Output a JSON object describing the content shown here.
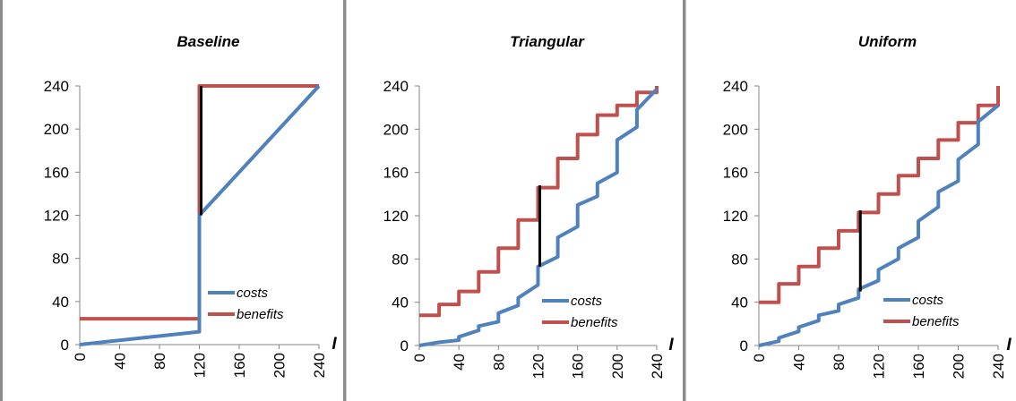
{
  "chart_data": [
    {
      "type": "line",
      "title": "Baseline",
      "xlabel": "I",
      "ylabel": "",
      "xlim": [
        0,
        240
      ],
      "ylim": [
        0,
        240
      ],
      "xticks": [
        "0",
        "40",
        "80",
        "120",
        "160",
        "200",
        "240"
      ],
      "yticks": [
        "0",
        "40",
        "80",
        "120",
        "160",
        "200",
        "240"
      ],
      "grid": false,
      "legend_position": "bottom-right",
      "series": [
        {
          "name": "costs",
          "color": "#4F81BD",
          "x": [
            0,
            120,
            120,
            240
          ],
          "y": [
            0,
            12,
            120,
            240
          ]
        },
        {
          "name": "benefits",
          "color": "#C0504D",
          "x": [
            0,
            120,
            120,
            240
          ],
          "y": [
            24,
            24,
            240,
            240
          ]
        }
      ],
      "gap_marker": {
        "x": 120,
        "y0": 120,
        "y1": 240,
        "color": "#000000"
      }
    },
    {
      "type": "line",
      "title": "Triangular",
      "xlabel": "I",
      "ylabel": "",
      "xlim": [
        0,
        240
      ],
      "ylim": [
        0,
        240
      ],
      "xticks": [
        "0",
        "40",
        "80",
        "120",
        "160",
        "200",
        "240"
      ],
      "yticks": [
        "0",
        "40",
        "80",
        "120",
        "160",
        "200",
        "240"
      ],
      "grid": false,
      "legend_position": "bottom-right",
      "series": [
        {
          "name": "costs",
          "color": "#4F81BD",
          "x": [
            0,
            20,
            40,
            40,
            60,
            60,
            80,
            80,
            100,
            100,
            120,
            120,
            140,
            140,
            160,
            160,
            180,
            180,
            200,
            200,
            220,
            220,
            240
          ],
          "y": [
            0,
            3,
            5,
            8,
            14,
            18,
            22,
            30,
            37,
            44,
            56,
            73,
            82,
            100,
            110,
            130,
            138,
            150,
            160,
            190,
            202,
            218,
            237
          ]
        },
        {
          "name": "benefits",
          "color": "#C0504D",
          "x": [
            0,
            20,
            20,
            40,
            40,
            60,
            60,
            80,
            80,
            100,
            100,
            120,
            120,
            140,
            140,
            160,
            160,
            180,
            180,
            200,
            200,
            220,
            220,
            240,
            240
          ],
          "y": [
            28,
            28,
            38,
            38,
            50,
            50,
            68,
            68,
            90,
            90,
            116,
            116,
            146,
            146,
            173,
            173,
            195,
            195,
            213,
            213,
            222,
            222,
            234,
            234,
            240
          ]
        }
      ],
      "gap_marker": {
        "x": 120,
        "y0": 73,
        "y1": 148,
        "color": "#000000"
      }
    },
    {
      "type": "line",
      "title": "Uniform",
      "xlabel": "I",
      "ylabel": "",
      "xlim": [
        0,
        240
      ],
      "ylim": [
        0,
        240
      ],
      "xticks": [
        "0",
        "40",
        "80",
        "120",
        "160",
        "200",
        "240"
      ],
      "yticks": [
        "0",
        "40",
        "80",
        "120",
        "160",
        "200",
        "240"
      ],
      "grid": false,
      "legend_position": "bottom-right",
      "series": [
        {
          "name": "costs",
          "color": "#4F81BD",
          "x": [
            0,
            20,
            20,
            40,
            40,
            60,
            60,
            80,
            80,
            100,
            100,
            120,
            120,
            140,
            140,
            160,
            160,
            180,
            180,
            200,
            200,
            220,
            220,
            240
          ],
          "y": [
            0,
            4,
            7,
            13,
            17,
            23,
            28,
            32,
            38,
            44,
            52,
            60,
            70,
            80,
            90,
            100,
            115,
            128,
            142,
            152,
            172,
            186,
            207,
            222
          ]
        },
        {
          "name": "benefits",
          "color": "#C0504D",
          "x": [
            0,
            20,
            20,
            40,
            40,
            60,
            60,
            80,
            80,
            100,
            100,
            120,
            120,
            140,
            140,
            160,
            160,
            180,
            180,
            200,
            200,
            220,
            220,
            240,
            240
          ],
          "y": [
            40,
            40,
            57,
            57,
            73,
            73,
            90,
            90,
            106,
            106,
            123,
            123,
            140,
            140,
            157,
            157,
            173,
            173,
            190,
            190,
            206,
            206,
            222,
            222,
            240
          ]
        }
      ],
      "gap_marker": {
        "x": 100,
        "y0": 50,
        "y1": 125,
        "color": "#000000"
      }
    }
  ]
}
